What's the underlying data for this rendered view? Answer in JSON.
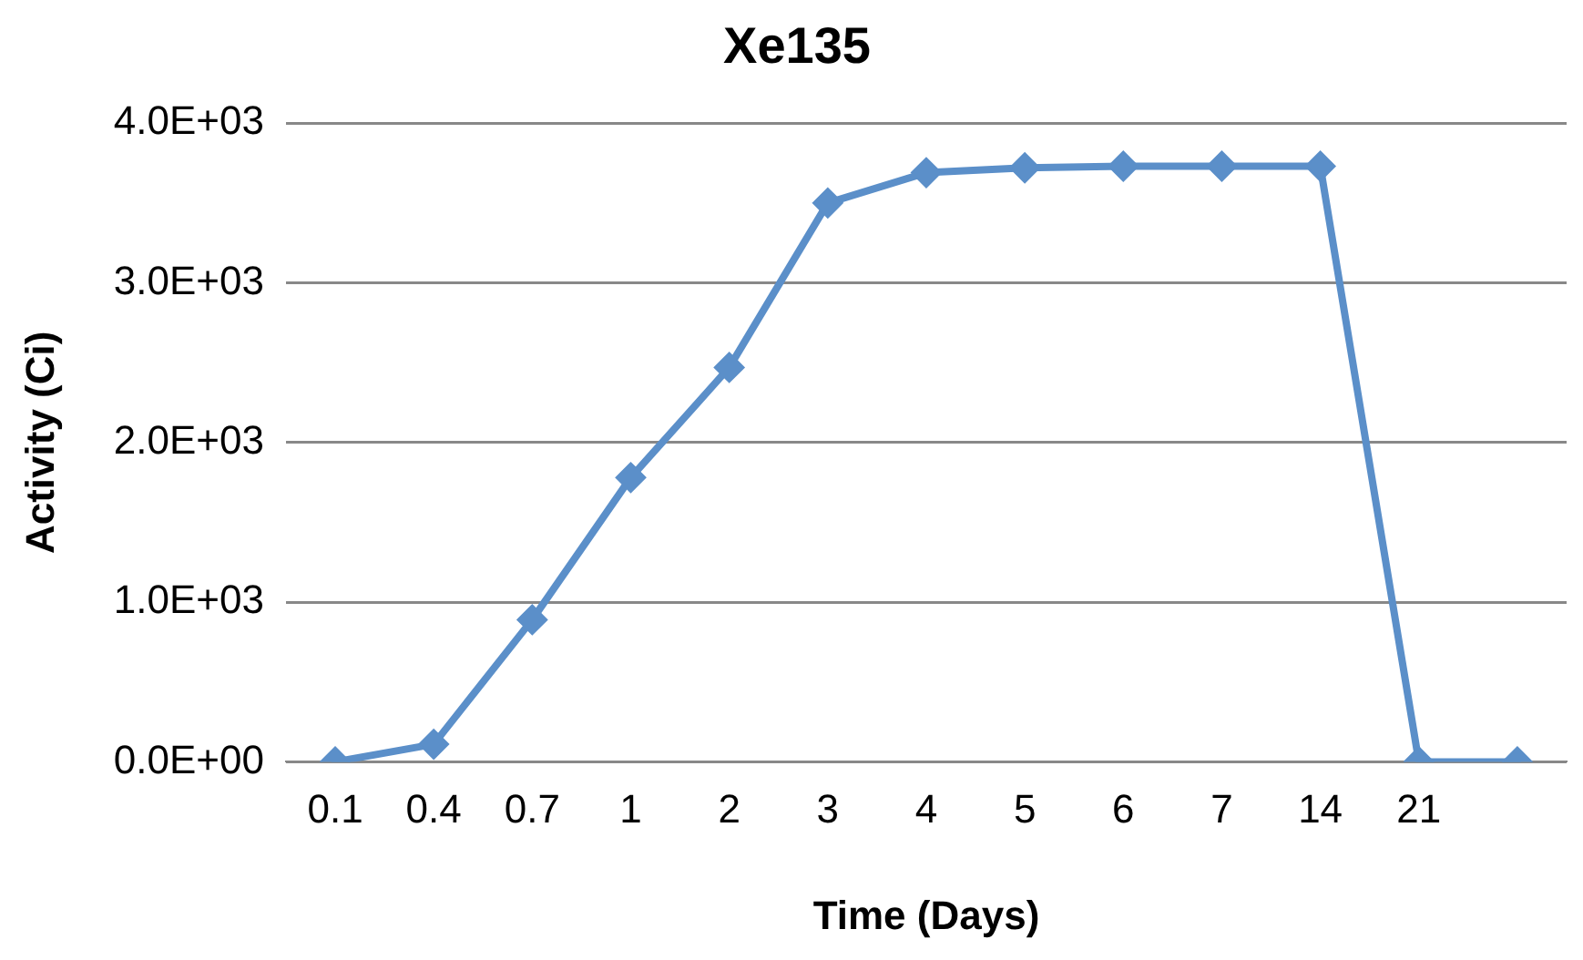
{
  "chart_data": {
    "type": "line",
    "title": "Xe135",
    "xlabel": "Time (Days)",
    "ylabel": "Activity (Ci)",
    "categories": [
      "0.1",
      "0.4",
      "0.7",
      "1",
      "2",
      "3",
      "4",
      "5",
      "6",
      "7",
      "14",
      "21",
      null
    ],
    "series": [
      {
        "color": "#5b8fc9",
        "values": [
          0,
          110,
          890,
          1780,
          2470,
          3500,
          3690,
          3720,
          3730,
          3730,
          3730,
          0,
          0
        ]
      }
    ],
    "ylim": [
      0,
      4000
    ],
    "yticks": [
      {
        "value": 0,
        "label": "0.0E+00"
      },
      {
        "value": 1000,
        "label": "1.0E+03"
      },
      {
        "value": 2000,
        "label": "2.0E+03"
      },
      {
        "value": 3000,
        "label": "3.0E+03"
      },
      {
        "value": 4000,
        "label": "4.0E+03"
      }
    ],
    "grid": "y",
    "legend": false,
    "marker": "diamond",
    "line_style": "solid"
  }
}
